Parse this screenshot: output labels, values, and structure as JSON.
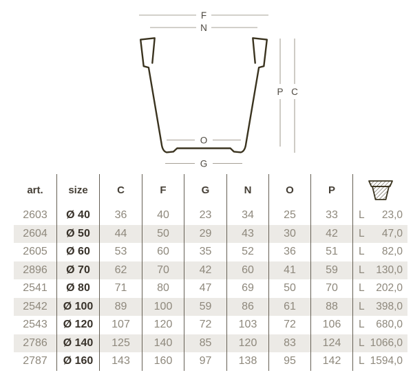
{
  "colors": {
    "bg": "#ffffff",
    "pot-line": "#3a331f",
    "dim-line": "#a6a095",
    "dim-label": "#4e4941",
    "header-text": "#453f36",
    "data-text": "#8e887c",
    "size-text": "#38322a",
    "row-shade": "#eceae6",
    "separator": "#645e53"
  },
  "diagram": {
    "labels": {
      "f": "F",
      "n": "N",
      "o": "O",
      "g": "G",
      "p": "P",
      "c": "C"
    }
  },
  "table": {
    "columns": [
      "art",
      "size",
      "c",
      "f",
      "g",
      "n",
      "o",
      "p"
    ],
    "headers": {
      "art": "art.",
      "size": "size",
      "c": "C",
      "f": "F",
      "g": "G",
      "n": "N",
      "o": "O",
      "p": "P"
    },
    "rows": [
      {
        "art": "2603",
        "size": "Ø 40",
        "c": "36",
        "f": "40",
        "g": "23",
        "n": "34",
        "o": "25",
        "p": "33",
        "vol_unit": "L",
        "vol": "23,0"
      },
      {
        "art": "2604",
        "size": "Ø 50",
        "c": "44",
        "f": "50",
        "g": "29",
        "n": "43",
        "o": "30",
        "p": "42",
        "vol_unit": "L",
        "vol": "47,0"
      },
      {
        "art": "2605",
        "size": "Ø 60",
        "c": "53",
        "f": "60",
        "g": "35",
        "n": "52",
        "o": "36",
        "p": "51",
        "vol_unit": "L",
        "vol": "82,0"
      },
      {
        "art": "2896",
        "size": "Ø 70",
        "c": "62",
        "f": "70",
        "g": "42",
        "n": "60",
        "o": "41",
        "p": "59",
        "vol_unit": "L",
        "vol": "130,0"
      },
      {
        "art": "2541",
        "size": "Ø 80",
        "c": "71",
        "f": "80",
        "g": "47",
        "n": "69",
        "o": "50",
        "p": "70",
        "vol_unit": "L",
        "vol": "202,0"
      },
      {
        "art": "2542",
        "size": "Ø 100",
        "c": "89",
        "f": "100",
        "g": "59",
        "n": "86",
        "o": "61",
        "p": "88",
        "vol_unit": "L",
        "vol": "398,0"
      },
      {
        "art": "2543",
        "size": "Ø 120",
        "c": "107",
        "f": "120",
        "g": "72",
        "n": "103",
        "o": "72",
        "p": "106",
        "vol_unit": "L",
        "vol": "680,0"
      },
      {
        "art": "2786",
        "size": "Ø 140",
        "c": "125",
        "f": "140",
        "g": "85",
        "n": "120",
        "o": "83",
        "p": "124",
        "vol_unit": "L",
        "vol": "1066,0"
      },
      {
        "art": "2787",
        "size": "Ø 160",
        "c": "143",
        "f": "160",
        "g": "97",
        "n": "138",
        "o": "95",
        "p": "142",
        "vol_unit": "L",
        "vol": "1594,0"
      }
    ]
  }
}
